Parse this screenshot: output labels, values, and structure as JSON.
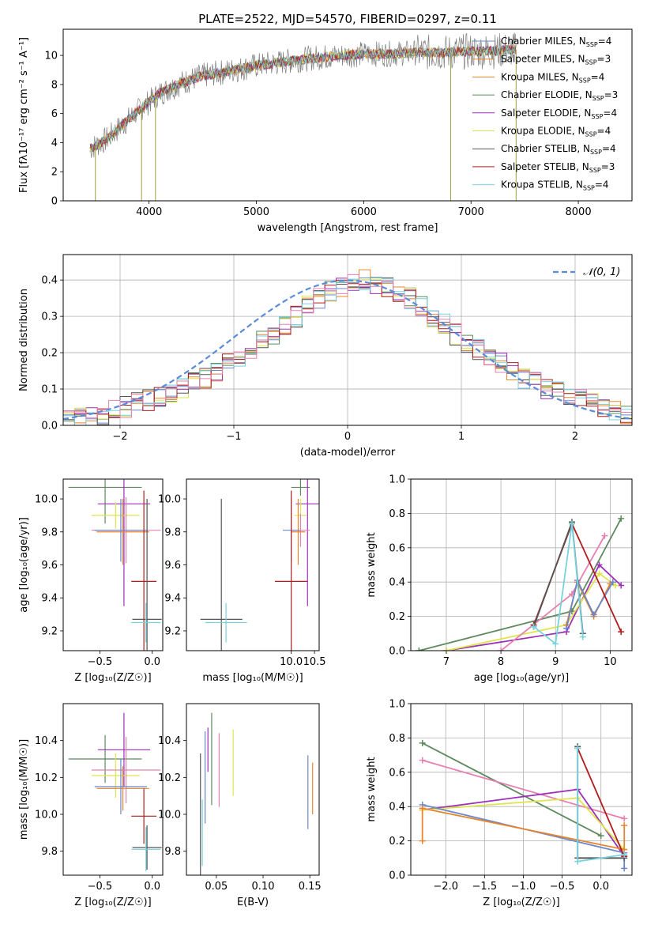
{
  "figure_title": "PLATE=2522, MJD=54570, FIBERID=0297, z=0.11",
  "model_colors": {
    "Chabrier MILES": "#6a87c9",
    "Salpeter MILES": "#e8852f",
    "Kroupa MILES": "#d98b2a",
    "Chabrier ELODIE": "#5e8a5e",
    "Salpeter ELODIE": "#9b30b8",
    "Kroupa ELODIE": "#dfe54a",
    "Chabrier STELIB": "#555555",
    "Salpeter STELIB": "#b01c1c",
    "Kroupa STELIB": "#77d3dd",
    "pink": "#e680b0",
    "normal": "#5b8bd9"
  },
  "chart_data": [
    {
      "id": "spectrum",
      "type": "line",
      "title": "PLATE=2522, MJD=54570, FIBERID=0297, z=0.11",
      "xlabel": "wavelength [Angstrom, rest frame]",
      "ylabel": "Flux [fλ10⁻¹⁷ erg cm⁻² s⁻¹ A⁻¹]",
      "xlim": [
        3200,
        8500
      ],
      "ylim": [
        0,
        11.8
      ],
      "xticks": [
        "4000",
        "5000",
        "6000",
        "7000",
        "8000"
      ],
      "yticks": [
        "0",
        "2",
        "4",
        "6",
        "8",
        "10"
      ],
      "grid": false,
      "legend_position": "right",
      "legend": [
        "Chabrier MILES, N_SSP=4",
        "Salpeter MILES, N_SSP=3",
        "Kroupa MILES, N_SSP=4",
        "Chabrier ELODIE, N_SSP=3",
        "Salpeter ELODIE, N_SSP=4",
        "Kroupa ELODIE, N_SSP=4",
        "Chabrier STELIB, N_SSP=4",
        "Salpeter STELIB, N_SSP=3",
        "Kroupa STELIB, N_SSP=4"
      ],
      "trend_x": [
        3450,
        3600,
        3750,
        3900,
        4000,
        4100,
        4300,
        4500,
        4800,
        5000,
        5200,
        5500,
        5800,
        6000,
        6200,
        6500,
        6800,
        7000,
        7200,
        7400
      ],
      "trend_y": [
        3.6,
        4.2,
        5.2,
        6.2,
        6.8,
        7.4,
        8.1,
        8.6,
        9.0,
        9.3,
        9.5,
        9.8,
        10.0,
        10.1,
        10.1,
        10.2,
        10.2,
        10.3,
        10.3,
        10.4
      ]
    },
    {
      "id": "residual-histogram",
      "type": "bar",
      "xlabel": "(data-model)/error",
      "ylabel": "Normed distribution",
      "xlim": [
        -2.5,
        2.5
      ],
      "ylim": [
        0,
        0.47
      ],
      "xticks": [
        "−2",
        "−1",
        "0",
        "1",
        "2"
      ],
      "yticks": [
        "0.0",
        "0.1",
        "0.2",
        "0.3",
        "0.4"
      ],
      "grid": true,
      "legend_position": "top-right",
      "legend": [
        "𝒩(0, 1)"
      ],
      "bin_width": 0.1,
      "bins_start": -2.5,
      "base_values": [
        0.02,
        0.02,
        0.03,
        0.03,
        0.04,
        0.05,
        0.06,
        0.07,
        0.08,
        0.09,
        0.1,
        0.12,
        0.13,
        0.15,
        0.17,
        0.19,
        0.21,
        0.23,
        0.25,
        0.28,
        0.3,
        0.33,
        0.35,
        0.37,
        0.38,
        0.39,
        0.4,
        0.39,
        0.38,
        0.37,
        0.35,
        0.33,
        0.3,
        0.28,
        0.25,
        0.23,
        0.21,
        0.19,
        0.17,
        0.15,
        0.13,
        0.12,
        0.1,
        0.09,
        0.08,
        0.07,
        0.06,
        0.05,
        0.04,
        0.03
      ]
    },
    {
      "id": "age-vs-Z",
      "type": "scatter",
      "xlabel": "Z [log₁₀(Z/Z☉)]",
      "ylabel": "age  [log₁₀(age/yr)]",
      "xlim": [
        -0.85,
        0.1
      ],
      "ylim": [
        9.08,
        10.12
      ],
      "xticks": [
        "−0.5",
        "0.0"
      ],
      "xtick_values": [
        -0.5,
        0.0
      ],
      "ytick_values": [
        9.2,
        9.4,
        9.6,
        9.8,
        10.0
      ],
      "yticks": [
        "9.2",
        "9.4",
        "9.6",
        "9.8",
        "10.0"
      ],
      "grid": false,
      "points": [
        {
          "x": -0.45,
          "y": 10.07,
          "xerr": 0.35,
          "yerr": 0.22,
          "color": "#5e8a5e"
        },
        {
          "x": -0.27,
          "y": 9.97,
          "xerr": 0.25,
          "yerr": 0.62,
          "color": "#9b30b8"
        },
        {
          "x": -0.35,
          "y": 9.9,
          "xerr": 0.23,
          "yerr": 0.08,
          "color": "#dfe54a"
        },
        {
          "x": -0.25,
          "y": 9.81,
          "xerr": 0.33,
          "yerr": 0.2,
          "color": "#e680b0"
        },
        {
          "x": -0.28,
          "y": 9.8,
          "xerr": 0.25,
          "yerr": 0.2,
          "color": "#e8852f"
        },
        {
          "x": -0.3,
          "y": 9.81,
          "xerr": 0.25,
          "yerr": 0.19,
          "color": "#6a87c9"
        },
        {
          "x": -0.08,
          "y": 9.5,
          "xerr": 0.12,
          "yerr": 0.55,
          "color": "#b01c1c"
        },
        {
          "x": -0.05,
          "y": 9.27,
          "xerr": 0.14,
          "yerr": 0.73,
          "color": "#555555"
        },
        {
          "x": -0.06,
          "y": 9.25,
          "xerr": 0.14,
          "yerr": 0.12,
          "color": "#77d3dd"
        }
      ]
    },
    {
      "id": "age-vs-mass",
      "type": "scatter",
      "xlabel": "mass [log₁₀(M/M☉)]",
      "ylabel": "",
      "xlim": [
        7.75,
        10.6
      ],
      "ylim": [
        9.08,
        10.12
      ],
      "xticks": [
        "10.0",
        "10.5"
      ],
      "xtick_values": [
        10.0,
        10.5
      ],
      "ytick_values": [
        9.2,
        9.4,
        9.6,
        9.8,
        10.0
      ],
      "yticks": [
        "9.2",
        "9.4",
        "9.6",
        "9.8",
        "10.0"
      ],
      "grid": false,
      "points": [
        {
          "x": 10.2,
          "y": 10.07,
          "xerr": 0.2,
          "yerr": 0.05,
          "color": "#5e8a5e"
        },
        {
          "x": 10.35,
          "y": 9.97,
          "xerr": 0.25,
          "yerr": 0.62,
          "color": "#9b30b8"
        },
        {
          "x": 10.2,
          "y": 9.9,
          "xerr": 0.13,
          "yerr": 0.1,
          "color": "#dfe54a"
        },
        {
          "x": 10.2,
          "y": 9.81,
          "xerr": 0.2,
          "yerr": 0.1,
          "color": "#e680b0"
        },
        {
          "x": 10.15,
          "y": 9.8,
          "xerr": 0.15,
          "yerr": 0.2,
          "color": "#e8852f"
        },
        {
          "x": 10.0,
          "y": 9.81,
          "xerr": 0.18,
          "yerr": 0.19,
          "color": "#6a87c9"
        },
        {
          "x": 10.0,
          "y": 9.5,
          "xerr": 0.35,
          "yerr": 0.55,
          "color": "#b01c1c"
        },
        {
          "x": 8.5,
          "y": 9.27,
          "xerr": 0.45,
          "yerr": 0.73,
          "color": "#555555"
        },
        {
          "x": 8.6,
          "y": 9.25,
          "xerr": 0.45,
          "yerr": 0.12,
          "color": "#77d3dd"
        }
      ]
    },
    {
      "id": "weight-vs-age",
      "type": "line",
      "xlabel": "age  [log₁₀(age/yr)]",
      "ylabel": "mass weight",
      "xlim": [
        6.35,
        10.4
      ],
      "ylim": [
        0,
        1.0
      ],
      "xticks": [
        "7",
        "8",
        "9",
        "10"
      ],
      "xtick_values": [
        7,
        8,
        9,
        10
      ],
      "ytick_values": [
        0.0,
        0.2,
        0.4,
        0.6,
        0.8,
        1.0
      ],
      "yticks": [
        "0.0",
        "0.2",
        "0.4",
        "0.6",
        "0.8",
        "1.0"
      ],
      "grid": true,
      "series": [
        {
          "color": "#5e8a5e",
          "x": [
            6.5,
            9.3,
            10.2
          ],
          "y": [
            0.0,
            0.23,
            0.77
          ]
        },
        {
          "color": "#9b30b8",
          "x": [
            7.0,
            9.2,
            9.8,
            10.2
          ],
          "y": [
            0.0,
            0.11,
            0.5,
            0.38
          ]
        },
        {
          "color": "#dfe54a",
          "x": [
            7.0,
            9.2,
            9.8,
            10.1
          ],
          "y": [
            0.0,
            0.15,
            0.45,
            0.38
          ]
        },
        {
          "color": "#e680b0",
          "x": [
            8.0,
            9.3,
            9.9
          ],
          "y": [
            0.0,
            0.33,
            0.67
          ]
        },
        {
          "color": "#e8852f",
          "x": [
            9.2,
            9.4,
            9.7,
            10.0
          ],
          "y": [
            0.15,
            0.4,
            0.2,
            0.39
          ]
        },
        {
          "color": "#6a87c9",
          "x": [
            9.2,
            9.4,
            9.7,
            10.05
          ],
          "y": [
            0.13,
            0.41,
            0.21,
            0.4
          ]
        },
        {
          "color": "#b01c1c",
          "x": [
            8.6,
            9.3,
            10.2
          ],
          "y": [
            0.15,
            0.74,
            0.11
          ]
        },
        {
          "color": "#555555",
          "x": [
            8.6,
            9.3,
            9.5
          ],
          "y": [
            0.14,
            0.75,
            0.1
          ]
        },
        {
          "color": "#77d3dd",
          "x": [
            8.6,
            9.0,
            9.3,
            9.5
          ],
          "y": [
            0.14,
            0.04,
            0.74,
            0.08
          ]
        }
      ]
    },
    {
      "id": "mass-vs-Z",
      "type": "scatter",
      "xlabel": "Z [log₁₀(Z/Z☉)]",
      "ylabel": "mass [log₁₀(M/M☉)]",
      "xlim": [
        -0.85,
        0.1
      ],
      "ylim": [
        9.67,
        10.6
      ],
      "xticks": [
        "−0.5",
        "0.0"
      ],
      "xtick_values": [
        -0.5,
        0.0
      ],
      "ytick_values": [
        9.8,
        10.0,
        10.2,
        10.4
      ],
      "yticks": [
        "9.8",
        "10.0",
        "10.2",
        "10.4"
      ],
      "grid": false,
      "points": [
        {
          "x": -0.45,
          "y": 10.3,
          "xerr": 0.35,
          "yerr": 0.13,
          "color": "#5e8a5e"
        },
        {
          "x": -0.27,
          "y": 10.35,
          "xerr": 0.25,
          "yerr": 0.2,
          "color": "#9b30b8"
        },
        {
          "x": -0.35,
          "y": 10.21,
          "xerr": 0.23,
          "yerr": 0.12,
          "color": "#dfe54a"
        },
        {
          "x": -0.25,
          "y": 10.24,
          "xerr": 0.33,
          "yerr": 0.18,
          "color": "#e680b0"
        },
        {
          "x": -0.28,
          "y": 10.14,
          "xerr": 0.25,
          "yerr": 0.12,
          "color": "#e8852f"
        },
        {
          "x": -0.3,
          "y": 10.15,
          "xerr": 0.25,
          "yerr": 0.15,
          "color": "#6a87c9"
        },
        {
          "x": -0.08,
          "y": 9.99,
          "xerr": 0.12,
          "yerr": 0.15,
          "color": "#b01c1c"
        },
        {
          "x": -0.05,
          "y": 9.82,
          "xerr": 0.14,
          "yerr": 0.12,
          "color": "#555555"
        },
        {
          "x": -0.06,
          "y": 9.81,
          "xerr": 0.14,
          "yerr": 0.12,
          "color": "#77d3dd"
        }
      ]
    },
    {
      "id": "mass-vs-EBV",
      "type": "scatter",
      "xlabel": "E(B-V)",
      "ylabel": "",
      "xlim": [
        0.018,
        0.16
      ],
      "ylim": [
        9.67,
        10.6
      ],
      "xticks": [
        "0.05",
        "0.10",
        "0.15"
      ],
      "xtick_values": [
        0.05,
        0.1,
        0.15
      ],
      "ytick_values": [
        9.8,
        10.0,
        10.2,
        10.4
      ],
      "yticks": [
        "9.8",
        "10.0",
        "10.2",
        "10.4"
      ],
      "grid": false,
      "points": [
        {
          "x": 0.033,
          "y": 10.0,
          "xerr": 0,
          "yerr": 0.33,
          "color": "#555555"
        },
        {
          "x": 0.035,
          "y": 9.9,
          "xerr": 0,
          "yerr": 0.18,
          "color": "#77d3dd"
        },
        {
          "x": 0.038,
          "y": 10.2,
          "xerr": 0,
          "yerr": 0.25,
          "color": "#6a87c9"
        },
        {
          "x": 0.041,
          "y": 10.35,
          "xerr": 0,
          "yerr": 0.12,
          "color": "#9b30b8"
        },
        {
          "x": 0.045,
          "y": 10.3,
          "xerr": 0,
          "yerr": 0.25,
          "color": "#5e8a5e"
        },
        {
          "x": 0.053,
          "y": 10.24,
          "xerr": 0,
          "yerr": 0.2,
          "color": "#e680b0"
        },
        {
          "x": 0.068,
          "y": 10.28,
          "xerr": 0,
          "yerr": 0.18,
          "color": "#dfe54a"
        },
        {
          "x": 0.148,
          "y": 10.12,
          "xerr": 0,
          "yerr": 0.2,
          "color": "#6a87c9"
        },
        {
          "x": 0.153,
          "y": 10.14,
          "xerr": 0,
          "yerr": 0.14,
          "color": "#e8852f"
        }
      ]
    },
    {
      "id": "weight-vs-Z",
      "type": "line",
      "xlabel": "Z [log₁₀(Z/Z☉)]",
      "ylabel": "mass weight",
      "xlim": [
        -2.45,
        0.4
      ],
      "ylim": [
        0,
        1.0
      ],
      "xticks": [
        "−2.0",
        "−1.5",
        "−1.0",
        "−0.5",
        "0.0"
      ],
      "xtick_values": [
        -2.0,
        -1.5,
        -1.0,
        -0.5,
        0.0
      ],
      "ytick_values": [
        0.0,
        0.2,
        0.4,
        0.6,
        0.8,
        1.0
      ],
      "yticks": [
        "0.0",
        "0.2",
        "0.4",
        "0.6",
        "0.8",
        "1.0"
      ],
      "grid": true,
      "series": [
        {
          "color": "#5e8a5e",
          "x": [
            -2.3,
            0.0
          ],
          "y": [
            0.77,
            0.23
          ]
        },
        {
          "color": "#e680b0",
          "x": [
            -2.3,
            0.3
          ],
          "y": [
            0.67,
            0.33
          ]
        },
        {
          "color": "#9b30b8",
          "x": [
            -2.3,
            -0.3,
            0.3
          ],
          "y": [
            0.38,
            0.5,
            0.11
          ]
        },
        {
          "color": "#dfe54a",
          "x": [
            -2.3,
            -0.3,
            0.3
          ],
          "y": [
            0.38,
            0.45,
            0.15
          ]
        },
        {
          "color": "#6a87c9",
          "x": [
            -2.3,
            0.3,
            0.3
          ],
          "y": [
            0.41,
            0.13,
            0.04
          ]
        },
        {
          "color": "#e8852f",
          "x": [
            -2.3,
            -2.3,
            0.3,
            0.3
          ],
          "y": [
            0.2,
            0.39,
            0.15,
            0.29
          ]
        },
        {
          "color": "#b01c1c",
          "x": [
            -0.3,
            0.3
          ],
          "y": [
            0.74,
            0.11
          ]
        },
        {
          "color": "#555555",
          "x": [
            -0.3,
            -0.3,
            0.3
          ],
          "y": [
            0.75,
            0.1,
            0.1
          ]
        },
        {
          "color": "#77d3dd",
          "x": [
            -0.3,
            -0.3,
            0.3
          ],
          "y": [
            0.74,
            0.08,
            0.12
          ]
        }
      ]
    }
  ]
}
